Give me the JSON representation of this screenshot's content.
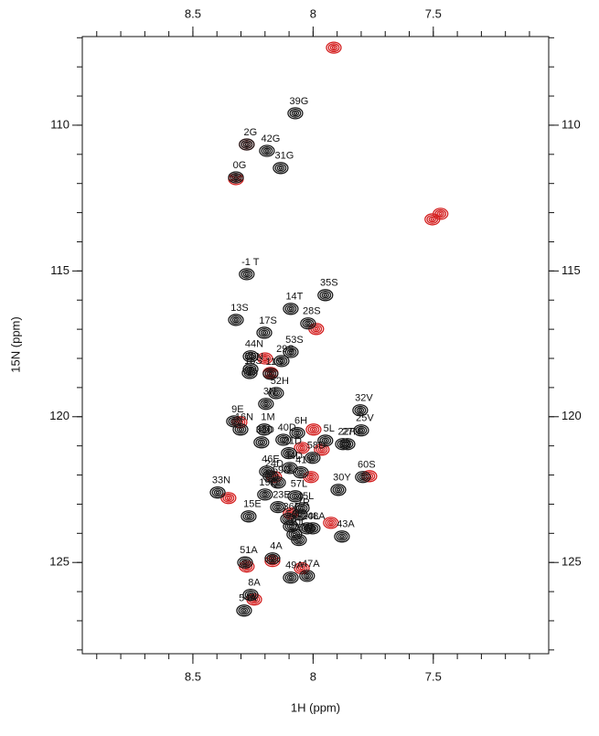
{
  "chart_data": {
    "type": "scatter",
    "xlabel": "1H (ppm)",
    "ylabel": "15N (ppm)",
    "xlim": [
      8.96,
      7.02
    ],
    "ylim": [
      106.96,
      128.13
    ],
    "xticks": [
      8.5,
      8.0,
      7.5
    ],
    "yticks": [
      110,
      115,
      120,
      125
    ],
    "xminorticks": [
      8.9,
      8.8,
      8.7,
      8.6,
      8.5,
      8.4,
      8.3,
      8.2,
      8.1,
      8.0,
      7.9,
      7.8,
      7.7,
      7.6,
      7.5,
      7.4,
      7.3,
      7.2,
      7.1
    ],
    "yminorticks": [
      107,
      108,
      109,
      110,
      111,
      112,
      113,
      114,
      115,
      116,
      117,
      118,
      119,
      120,
      121,
      122,
      123,
      124,
      125,
      126,
      127,
      128
    ],
    "grid": false,
    "series": [
      {
        "color": "#d42020",
        "x": [
          7.914,
          7.47,
          7.504,
          7.987,
          8.276,
          8.321,
          8.2,
          8.177,
          7.998,
          8.047,
          7.964,
          8.162,
          7.766,
          8.009,
          8.276,
          8.169,
          8.047,
          8.245,
          8.306,
          8.093,
          7.926,
          8.352
        ],
        "y": [
          107.34,
          113.04,
          113.23,
          116.99,
          110.66,
          111.85,
          118.0,
          118.5,
          120.44,
          121.07,
          121.13,
          122.07,
          122.04,
          122.07,
          125.14,
          124.95,
          125.2,
          126.27,
          120.19,
          123.32,
          123.64,
          122.79
        ]
      },
      {
        "color": "#1a1a1a",
        "labels": [
          "39G",
          "2G",
          "42G",
          "0G",
          "31G",
          "-1 T",
          "35S",
          "14T",
          "13S",
          "28S",
          "17S",
          "53S",
          "44N",
          "29S",
          "55N",
          "18S",
          "11S",
          "52H",
          "3N",
          "32V",
          "9E",
          "16N",
          "25V",
          "1M",
          "6H",
          "5L",
          "22F",
          "27N",
          "40D",
          "38D",
          "21D",
          "58D",
          "34D",
          "46E",
          "41Y",
          "24D",
          "60S",
          "59D",
          "30Y",
          "33N",
          "19Q",
          "57L",
          "23E",
          "45L",
          "7R",
          "15E",
          "36F",
          "20L",
          "56L",
          "10L",
          "48A",
          "43A",
          "26W",
          "51A",
          "4A",
          "49A",
          "47A",
          "8A",
          "54A"
        ],
        "x": [
          8.074,
          8.276,
          8.192,
          8.321,
          8.135,
          8.276,
          7.949,
          8.093,
          8.321,
          8.021,
          8.203,
          8.093,
          8.26,
          8.131,
          8.26,
          8.264,
          8.177,
          8.154,
          8.196,
          7.804,
          8.329,
          8.302,
          7.8,
          8.203,
          8.066,
          7.949,
          7.876,
          7.857,
          8.124,
          8.215,
          8.101,
          8.002,
          8.097,
          8.192,
          8.051,
          8.177,
          7.793,
          8.146,
          7.895,
          8.397,
          8.2,
          8.074,
          8.146,
          8.047,
          8.055,
          8.268,
          8.104,
          8.025,
          8.093,
          8.078,
          8.002,
          7.88,
          8.059,
          8.283,
          8.169,
          8.093,
          8.025,
          8.26,
          8.287
        ],
        "y": [
          109.59,
          110.66,
          110.88,
          111.79,
          111.47,
          115.11,
          115.83,
          116.3,
          116.68,
          116.8,
          117.12,
          117.78,
          117.93,
          118.09,
          118.37,
          118.5,
          118.53,
          119.19,
          119.56,
          119.78,
          120.16,
          120.44,
          120.47,
          120.44,
          120.56,
          120.82,
          120.94,
          120.94,
          120.79,
          120.88,
          121.25,
          121.41,
          121.76,
          121.88,
          121.91,
          122.04,
          122.07,
          122.26,
          122.51,
          122.6,
          122.67,
          122.73,
          123.1,
          123.14,
          123.36,
          123.42,
          123.51,
          123.83,
          123.76,
          124.04,
          123.83,
          124.11,
          124.23,
          125.0,
          124.86,
          125.52,
          125.46,
          126.11,
          126.65
        ]
      }
    ]
  }
}
